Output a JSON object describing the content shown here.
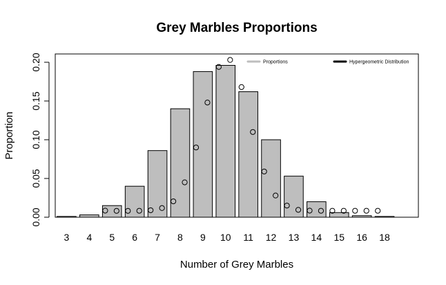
{
  "chart_data": {
    "type": "bar",
    "title": "Grey Marbles Proportions",
    "xlabel": "Number of Grey Marbles",
    "ylabel": "Proportion",
    "ylim": [
      0,
      0.2
    ],
    "y_ticks": [
      "0.00",
      "0.05",
      "0.10",
      "0.15",
      "0.20"
    ],
    "categories": [
      "3",
      "4",
      "5",
      "6",
      "7",
      "8",
      "9",
      "10",
      "11",
      "12",
      "13",
      "14",
      "15",
      "16",
      "18"
    ],
    "series": [
      {
        "name": "Proportions",
        "kind": "bar",
        "color": "#bebebe",
        "values": [
          0.001,
          0.003,
          0.015,
          0.04,
          0.086,
          0.14,
          0.188,
          0.196,
          0.162,
          0.1,
          0.053,
          0.02,
          0.006,
          0.002,
          0.001
        ]
      },
      {
        "name": "Hypergeometric Distribution",
        "kind": "points",
        "color": "#000000",
        "x": [
          2.7,
          3.2,
          3.7,
          4.2,
          4.7,
          5.2,
          5.7,
          6.2,
          6.7,
          7.2,
          7.7,
          8.2,
          8.7,
          9.2,
          9.7,
          10.2,
          10.7,
          11.2,
          11.7,
          12.2,
          12.7,
          13.2,
          13.7,
          14.2,
          14.7
        ],
        "values": [
          0.0085,
          0.0082,
          0.0082,
          0.0083,
          0.009,
          0.0118,
          0.0205,
          0.045,
          0.09,
          0.148,
          0.194,
          0.203,
          0.168,
          0.11,
          0.059,
          0.028,
          0.015,
          0.0095,
          0.0085,
          0.0083,
          0.0083,
          0.0083,
          0.0083,
          0.0083,
          0.0083
        ]
      }
    ],
    "legend": {
      "position": "top-right",
      "entries": [
        {
          "label": "Proportions",
          "color": "#bebebe"
        },
        {
          "label": "Hypergeometric Distribution",
          "color": "#000000"
        }
      ]
    },
    "grid": false
  }
}
